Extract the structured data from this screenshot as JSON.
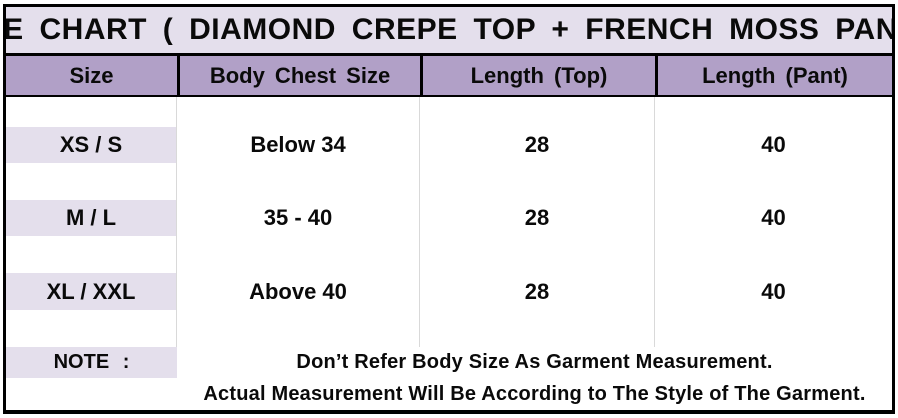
{
  "title": "SIZE CHART ( DIAMOND CREPE TOP + FRENCH MOSS PANT )",
  "chart_data": {
    "type": "table",
    "title": "SIZE CHART ( DIAMOND CREPE TOP + FRENCH MOSS PANT )",
    "columns": [
      "Size",
      "Body Chest Size",
      "Length (Top)",
      "Length (Pant)"
    ],
    "rows": [
      [
        "XS / S",
        "Below 34",
        "28",
        "40"
      ],
      [
        "M / L",
        "35 - 40",
        "28",
        "40"
      ],
      [
        "XL / XXL",
        "Above 40",
        "28",
        "40"
      ]
    ],
    "notes": [
      "Don’t Refer Body Size As Garment Measurement.",
      "Actual Measurement Will Be According to The Style of The Garment."
    ]
  },
  "note_label": "NOTE :",
  "colors": {
    "header_bg": "#B1A0C7",
    "band_bg": "#E4DFEC",
    "grid_line": "#D9D9D9",
    "border": "#000000",
    "text": "#0a0a0a"
  }
}
